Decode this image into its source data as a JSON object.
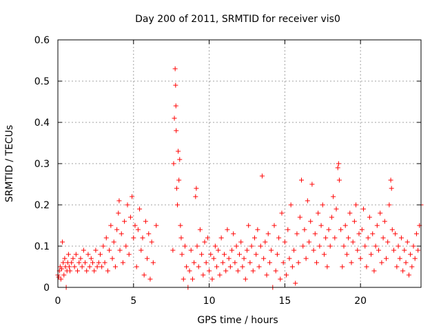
{
  "chart_data": {
    "type": "scatter",
    "title": "Day 200 of 2011, SRMTID for receiver vis0",
    "xlabel": "GPS time / hours",
    "ylabel": "SRMTID / TECUs",
    "xlim": [
      0,
      24
    ],
    "ylim": [
      0,
      0.6
    ],
    "xticks": [
      0,
      5,
      10,
      15,
      20
    ],
    "yticks": [
      0,
      0.1,
      0.2,
      0.3,
      0.4,
      0.5,
      0.6
    ],
    "grid": true,
    "marker": "+",
    "series": [
      {
        "name": "vis0",
        "color": "#ff0000",
        "points": [
          [
            0.0,
            0.03
          ],
          [
            0.05,
            0.025
          ],
          [
            0.1,
            0.04
          ],
          [
            0.15,
            0.05
          ],
          [
            0.2,
            0.02
          ],
          [
            0.25,
            0.045
          ],
          [
            0.3,
            0.11
          ],
          [
            0.35,
            0.06
          ],
          [
            0.4,
            0.03
          ],
          [
            0.45,
            0.07
          ],
          [
            0.5,
            0.05
          ],
          [
            0.55,
            0.0
          ],
          [
            0.6,
            0.04
          ],
          [
            0.65,
            0.06
          ],
          [
            0.7,
            0.08
          ],
          [
            0.75,
            0.05
          ],
          [
            0.8,
            0.04
          ],
          [
            0.9,
            0.06
          ],
          [
            1.0,
            0.07
          ],
          [
            1.1,
            0.05
          ],
          [
            1.2,
            0.08
          ],
          [
            1.3,
            0.04
          ],
          [
            1.4,
            0.06
          ],
          [
            1.5,
            0.07
          ],
          [
            1.6,
            0.05
          ],
          [
            1.7,
            0.09
          ],
          [
            1.8,
            0.06
          ],
          [
            1.9,
            0.04
          ],
          [
            2.0,
            0.08
          ],
          [
            2.1,
            0.05
          ],
          [
            2.2,
            0.07
          ],
          [
            2.3,
            0.06
          ],
          [
            2.4,
            0.04
          ],
          [
            2.5,
            0.09
          ],
          [
            2.6,
            0.05
          ],
          [
            2.7,
            0.06
          ],
          [
            2.8,
            0.08
          ],
          [
            2.9,
            0.05
          ],
          [
            3.0,
            0.1
          ],
          [
            3.1,
            0.06
          ],
          [
            3.2,
            0.12
          ],
          [
            3.3,
            0.04
          ],
          [
            3.4,
            0.09
          ],
          [
            3.5,
            0.15
          ],
          [
            3.6,
            0.07
          ],
          [
            3.7,
            0.11
          ],
          [
            3.8,
            0.05
          ],
          [
            3.9,
            0.14
          ],
          [
            4.0,
            0.18
          ],
          [
            4.05,
            0.21
          ],
          [
            4.1,
            0.09
          ],
          [
            4.2,
            0.13
          ],
          [
            4.3,
            0.06
          ],
          [
            4.4,
            0.16
          ],
          [
            4.5,
            0.1
          ],
          [
            4.6,
            0.2
          ],
          [
            4.7,
            0.08
          ],
          [
            4.8,
            0.17
          ],
          [
            4.9,
            0.22
          ],
          [
            5.0,
            0.12
          ],
          [
            5.1,
            0.15
          ],
          [
            5.2,
            0.05
          ],
          [
            5.3,
            0.14
          ],
          [
            5.4,
            0.19
          ],
          [
            5.5,
            0.09
          ],
          [
            5.6,
            0.12
          ],
          [
            5.7,
            0.03
          ],
          [
            5.8,
            0.16
          ],
          [
            5.9,
            0.07
          ],
          [
            6.0,
            0.13
          ],
          [
            6.1,
            0.02
          ],
          [
            6.2,
            0.11
          ],
          [
            6.3,
            0.06
          ],
          [
            6.5,
            0.15
          ],
          [
            7.6,
            0.09
          ],
          [
            7.65,
            0.3
          ],
          [
            7.7,
            0.41
          ],
          [
            7.75,
            0.53
          ],
          [
            7.78,
            0.49
          ],
          [
            7.8,
            0.44
          ],
          [
            7.82,
            0.38
          ],
          [
            7.85,
            0.24
          ],
          [
            7.9,
            0.2
          ],
          [
            7.95,
            0.33
          ],
          [
            8.0,
            0.26
          ],
          [
            8.05,
            0.31
          ],
          [
            8.1,
            0.15
          ],
          [
            8.15,
            0.12
          ],
          [
            8.2,
            0.08
          ],
          [
            8.3,
            0.02
          ],
          [
            8.4,
            0.1
          ],
          [
            8.5,
            0.05
          ],
          [
            8.6,
            0.0
          ],
          [
            8.7,
            0.04
          ],
          [
            8.8,
            0.09
          ],
          [
            8.9,
            0.02
          ],
          [
            9.0,
            0.06
          ],
          [
            9.1,
            0.22
          ],
          [
            9.15,
            0.24
          ],
          [
            9.2,
            0.1
          ],
          [
            9.3,
            0.05
          ],
          [
            9.4,
            0.14
          ],
          [
            9.5,
            0.08
          ],
          [
            9.6,
            0.03
          ],
          [
            9.7,
            0.11
          ],
          [
            9.8,
            0.06
          ],
          [
            9.9,
            0.12
          ],
          [
            10.0,
            0.04
          ],
          [
            10.1,
            0.08
          ],
          [
            10.2,
            0.02
          ],
          [
            10.3,
            0.07
          ],
          [
            10.4,
            0.1
          ],
          [
            10.5,
            0.05
          ],
          [
            10.6,
            0.09
          ],
          [
            10.7,
            0.03
          ],
          [
            10.8,
            0.12
          ],
          [
            10.9,
            0.06
          ],
          [
            11.0,
            0.08
          ],
          [
            11.1,
            0.04
          ],
          [
            11.2,
            0.14
          ],
          [
            11.3,
            0.07
          ],
          [
            11.4,
            0.05
          ],
          [
            11.5,
            0.09
          ],
          [
            11.6,
            0.13
          ],
          [
            11.7,
            0.06
          ],
          [
            11.8,
            0.1
          ],
          [
            11.9,
            0.04
          ],
          [
            12.0,
            0.08
          ],
          [
            12.1,
            0.11
          ],
          [
            12.2,
            0.05
          ],
          [
            12.3,
            0.07
          ],
          [
            12.4,
            0.02
          ],
          [
            12.5,
            0.09
          ],
          [
            12.6,
            0.15
          ],
          [
            12.7,
            0.06
          ],
          [
            12.8,
            0.1
          ],
          [
            12.9,
            0.04
          ],
          [
            13.0,
            0.12
          ],
          [
            13.1,
            0.08
          ],
          [
            13.2,
            0.14
          ],
          [
            13.3,
            0.05
          ],
          [
            13.4,
            0.1
          ],
          [
            13.5,
            0.27
          ],
          [
            13.6,
            0.07
          ],
          [
            13.7,
            0.11
          ],
          [
            13.8,
            0.03
          ],
          [
            13.9,
            0.13
          ],
          [
            14.0,
            0.06
          ],
          [
            14.1,
            0.09
          ],
          [
            14.2,
            0.0
          ],
          [
            14.3,
            0.15
          ],
          [
            14.4,
            0.04
          ],
          [
            14.5,
            0.08
          ],
          [
            14.6,
            0.12
          ],
          [
            14.7,
            0.02
          ],
          [
            14.8,
            0.18
          ],
          [
            14.9,
            0.06
          ],
          [
            15.0,
            0.11
          ],
          [
            15.1,
            0.03
          ],
          [
            15.2,
            0.14
          ],
          [
            15.3,
            0.07
          ],
          [
            15.4,
            0.2
          ],
          [
            15.5,
            0.05
          ],
          [
            15.6,
            0.09
          ],
          [
            15.7,
            0.01
          ],
          [
            15.8,
            0.13
          ],
          [
            15.9,
            0.06
          ],
          [
            16.0,
            0.17
          ],
          [
            16.1,
            0.26
          ],
          [
            16.2,
            0.1
          ],
          [
            16.3,
            0.14
          ],
          [
            16.4,
            0.07
          ],
          [
            16.5,
            0.21
          ],
          [
            16.6,
            0.11
          ],
          [
            16.7,
            0.16
          ],
          [
            16.8,
            0.25
          ],
          [
            16.9,
            0.09
          ],
          [
            17.0,
            0.13
          ],
          [
            17.1,
            0.06
          ],
          [
            17.2,
            0.18
          ],
          [
            17.3,
            0.1
          ],
          [
            17.4,
            0.15
          ],
          [
            17.5,
            0.2
          ],
          [
            17.6,
            0.08
          ],
          [
            17.7,
            0.12
          ],
          [
            17.8,
            0.05
          ],
          [
            17.9,
            0.14
          ],
          [
            18.0,
            0.1
          ],
          [
            18.1,
            0.17
          ],
          [
            18.2,
            0.22
          ],
          [
            18.3,
            0.12
          ],
          [
            18.4,
            0.19
          ],
          [
            18.5,
            0.29
          ],
          [
            18.55,
            0.3
          ],
          [
            18.6,
            0.26
          ],
          [
            18.7,
            0.14
          ],
          [
            18.8,
            0.05
          ],
          [
            18.9,
            0.1
          ],
          [
            19.0,
            0.15
          ],
          [
            19.1,
            0.08
          ],
          [
            19.2,
            0.12
          ],
          [
            19.3,
            0.18
          ],
          [
            19.4,
            0.06
          ],
          [
            19.5,
            0.11
          ],
          [
            19.6,
            0.16
          ],
          [
            19.7,
            0.2
          ],
          [
            19.8,
            0.09
          ],
          [
            19.9,
            0.13
          ],
          [
            20.0,
            0.07
          ],
          [
            20.1,
            0.14
          ],
          [
            20.2,
            0.19
          ],
          [
            20.3,
            0.1
          ],
          [
            20.4,
            0.05
          ],
          [
            20.5,
            0.12
          ],
          [
            20.6,
            0.17
          ],
          [
            20.7,
            0.08
          ],
          [
            20.8,
            0.13
          ],
          [
            20.9,
            0.04
          ],
          [
            21.0,
            0.1
          ],
          [
            21.1,
            0.15
          ],
          [
            21.2,
            0.09
          ],
          [
            21.3,
            0.18
          ],
          [
            21.4,
            0.06
          ],
          [
            21.5,
            0.12
          ],
          [
            21.6,
            0.16
          ],
          [
            21.7,
            0.07
          ],
          [
            21.8,
            0.11
          ],
          [
            21.9,
            0.2
          ],
          [
            22.0,
            0.26
          ],
          [
            22.05,
            0.24
          ],
          [
            22.1,
            0.14
          ],
          [
            22.2,
            0.09
          ],
          [
            22.3,
            0.13
          ],
          [
            22.4,
            0.05
          ],
          [
            22.5,
            0.1
          ],
          [
            22.6,
            0.07
          ],
          [
            22.7,
            0.12
          ],
          [
            22.8,
            0.04
          ],
          [
            22.9,
            0.09
          ],
          [
            23.0,
            0.06
          ],
          [
            23.1,
            0.11
          ],
          [
            23.2,
            0.03
          ],
          [
            23.3,
            0.08
          ],
          [
            23.4,
            0.05
          ],
          [
            23.5,
            0.1
          ],
          [
            23.6,
            0.07
          ],
          [
            23.7,
            0.13
          ],
          [
            23.8,
            0.09
          ],
          [
            23.9,
            0.15
          ],
          [
            24.0,
            0.2
          ]
        ]
      }
    ]
  }
}
